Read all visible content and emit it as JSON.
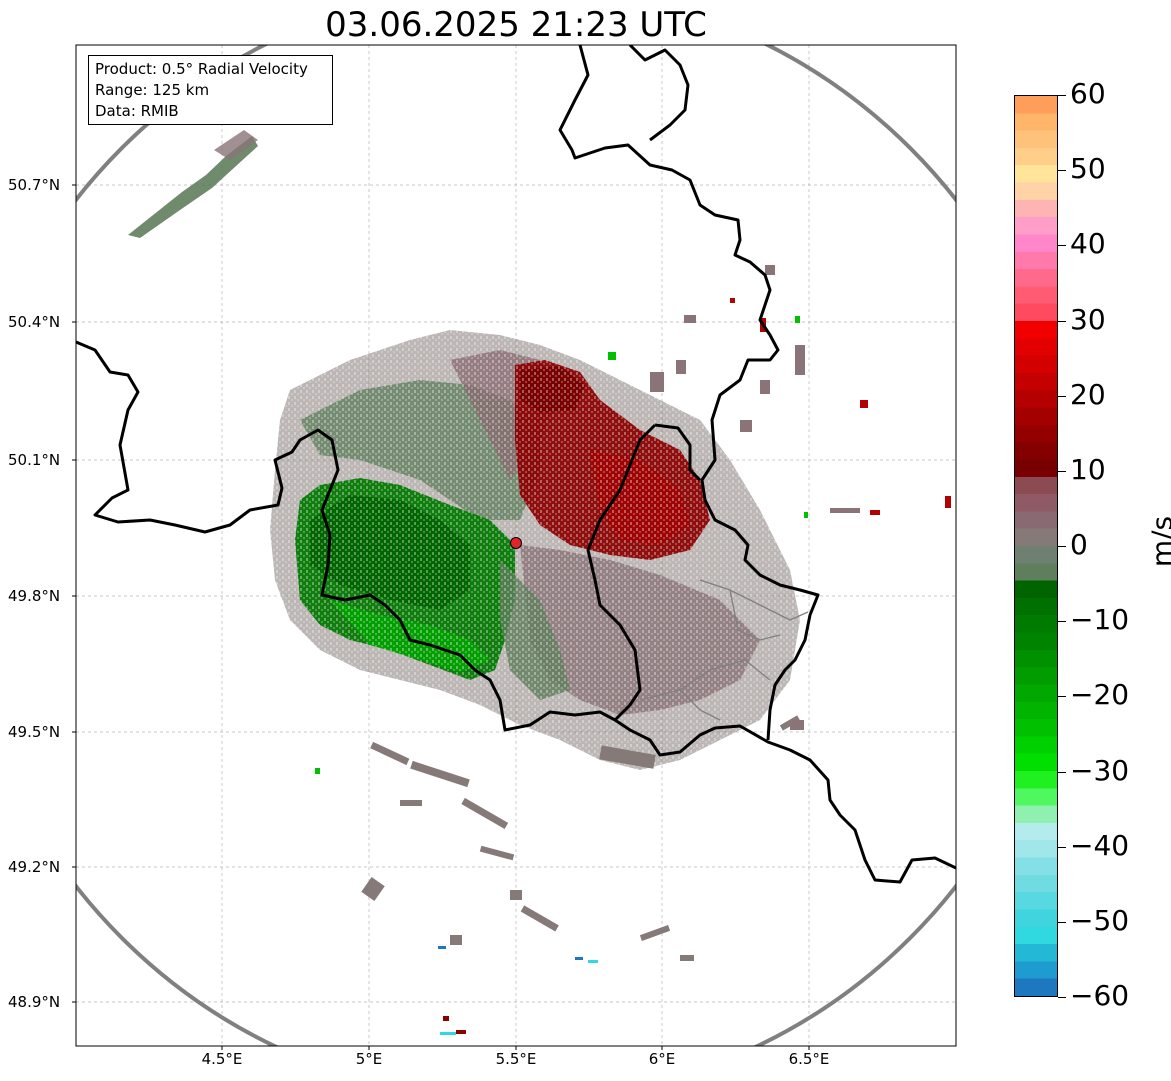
{
  "title": "03.06.2025 21:23 UTC",
  "info": {
    "product": "Product: 0.5° Radial Velocity",
    "range": "Range: 125 km",
    "data": "Data: RMIB"
  },
  "lat_labels": [
    "50.7°N",
    "50.4°N",
    "50.1°N",
    "49.8°N",
    "49.5°N",
    "49.2°N",
    "48.9°N"
  ],
  "lon_labels": [
    "4.5°E",
    "5°E",
    "5.5°E",
    "6°E",
    "6.5°E"
  ],
  "colorbar": {
    "unit": "m/s",
    "min": -60,
    "max": 60,
    "ticks": [
      "60",
      "50",
      "40",
      "30",
      "20",
      "10",
      "0",
      "−10",
      "−20",
      "−30",
      "−40",
      "−50",
      "−60"
    ],
    "colors_top_to_bottom": [
      "#ff9e5a",
      "#ffb56a",
      "#ffc27a",
      "#ffce88",
      "#ffe49a",
      "#ffd2a8",
      "#ffb4b4",
      "#ff9ec8",
      "#ff86c8",
      "#ff7aaa",
      "#ff6a8c",
      "#ff5c74",
      "#ff4a60",
      "#f20000",
      "#e20000",
      "#d40000",
      "#c40000",
      "#b40000",
      "#a40000",
      "#940000",
      "#840000",
      "#780000",
      "#8c4a52",
      "#8f5a66",
      "#8a6a72",
      "#857a78",
      "#6e8070",
      "#5f7e5c",
      "#006400",
      "#007000",
      "#007a00",
      "#008400",
      "#009000",
      "#009c00",
      "#00a800",
      "#00b400",
      "#00c000",
      "#00d000",
      "#00e000",
      "#20f020",
      "#50f860",
      "#90f0b0",
      "#b4ecee",
      "#a0e6ea",
      "#84e0e6",
      "#70dce2",
      "#58d8e0",
      "#40d4de",
      "#30d8e0",
      "#22b8d6",
      "#1e9cd0",
      "#1e78c0"
    ]
  },
  "radar_site": {
    "lon": 5.5,
    "lat": 49.91,
    "color": "#e0242a"
  },
  "velocity_colors": {
    "outbound": "#8b0000",
    "outbound_light": "#b01010",
    "inbound": "#008000",
    "inbound_dark": "#006400",
    "near_zero": "#8a7478",
    "near_zero_green": "#5f7e5c"
  }
}
